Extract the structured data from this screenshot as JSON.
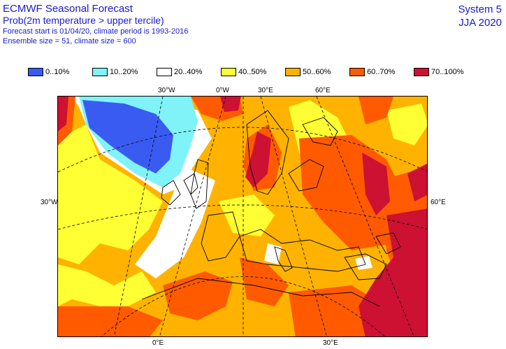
{
  "header": {
    "title": "ECMWF Seasonal Forecast",
    "subtitle": "Prob(2m temperature > upper tercile)",
    "line3": "Forecast start is 01/04/20, climate period is 1993-2016",
    "line4": "Ensemble size = 51, climate size = 600"
  },
  "system": {
    "name": "System 5",
    "season": "JJA 2020"
  },
  "legend": [
    {
      "label": "0..10%",
      "color": "#3a5bf2"
    },
    {
      "label": "10..20%",
      "color": "#7ff3f7"
    },
    {
      "label": "20..40%",
      "color": "#ffffff"
    },
    {
      "label": "40..50%",
      "color": "#ffff33"
    },
    {
      "label": "50..60%",
      "color": "#ffb300"
    },
    {
      "label": "60..70%",
      "color": "#ff5a00"
    },
    {
      "label": "70..100%",
      "color": "#cc1133"
    }
  ],
  "map_labels": {
    "top_30w": "30°W",
    "top_0e": "0°W",
    "top_30e": "30°E",
    "top_60e": "60°E",
    "left_30w": "30°W",
    "right_60e": "60°E",
    "bottom_0e": "0°E",
    "bottom_30e": "30°E"
  }
}
